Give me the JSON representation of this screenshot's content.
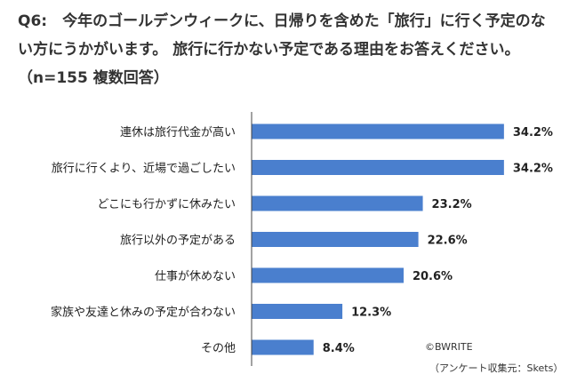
{
  "chart_data": {
    "type": "bar",
    "orientation": "horizontal",
    "title": "Q6:　今年のゴールデンウィークに、日帰りを含めた「旅行」に行く予定のない方にうかがいます。 旅行に行かない予定である理由をお答えください。（n=155 複数回答）",
    "categories": [
      "連休は旅行代金が高い",
      "旅行に行くより、近場で過ごしたい",
      "どこにも行かずに休みたい",
      "旅行以外の予定がある",
      "仕事が休めない",
      "家族や友達と休みの予定が合わない",
      "その他"
    ],
    "values": [
      34.2,
      34.2,
      23.2,
      22.6,
      20.6,
      12.3,
      8.4
    ],
    "value_labels": [
      "34.2%",
      "34.2%",
      "23.2%",
      "22.6%",
      "20.6%",
      "12.3%",
      "8.4%"
    ],
    "unit": "%",
    "xlim": [
      0,
      36
    ],
    "grid": false,
    "bar_color": "#4a7fce"
  },
  "credits": {
    "copyright": "©BWRITE",
    "source": "（アンケート収集元：Skets）"
  }
}
